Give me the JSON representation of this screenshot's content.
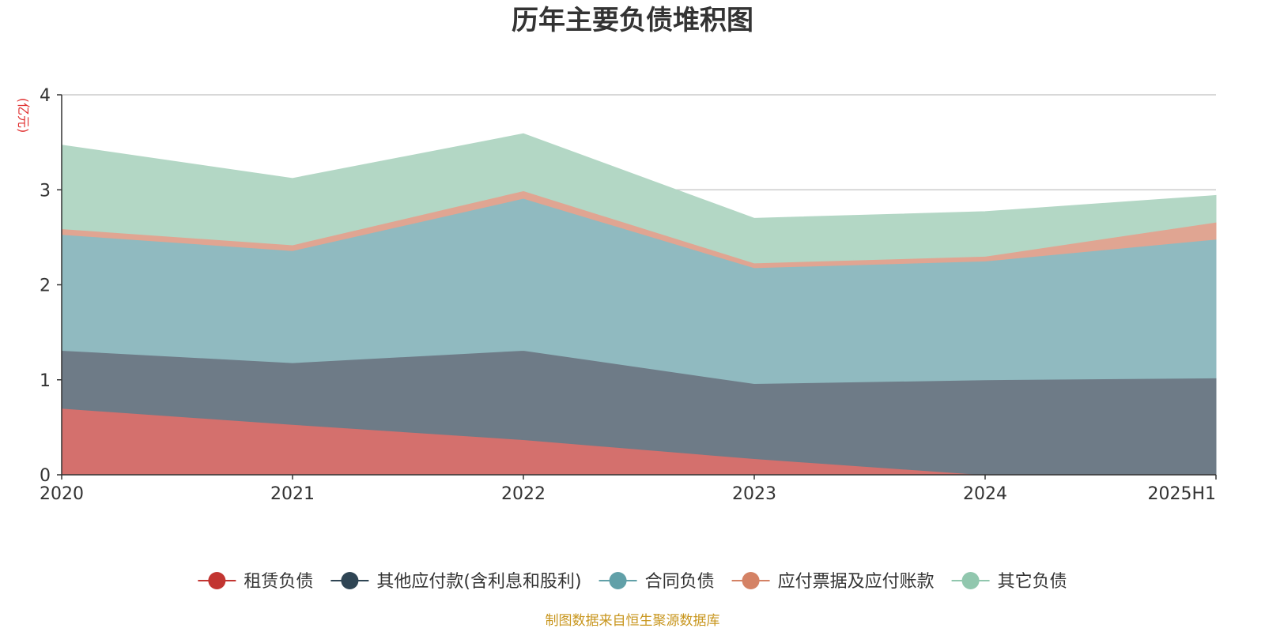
{
  "chart_data": {
    "type": "area",
    "stacked": true,
    "title": "历年主要负债堆积图",
    "ylabel": "(亿元)",
    "xlabel": "",
    "ylim": [
      0,
      4
    ],
    "yticks": [
      0,
      1,
      2,
      3,
      4
    ],
    "grid": true,
    "legend_position": "bottom",
    "categories": [
      "2020",
      "2021",
      "2022",
      "2023",
      "2024",
      "2025H1"
    ],
    "series": [
      {
        "name": "租赁负债",
        "color": "#c23531",
        "fill": "#d4706d",
        "values": [
          0.7,
          0.53,
          0.37,
          0.17,
          0.0,
          0.0
        ]
      },
      {
        "name": "其他应付款(含利息和股利)",
        "color": "#2f4554",
        "fill": "#6e7b87",
        "values": [
          0.61,
          0.65,
          0.94,
          0.79,
          1.0,
          1.02
        ]
      },
      {
        "name": "合同负债",
        "color": "#61a0a8",
        "fill": "#90bac0",
        "values": [
          1.22,
          1.18,
          1.6,
          1.22,
          1.25,
          1.46
        ]
      },
      {
        "name": "应付票据及应付账款",
        "color": "#d48265",
        "fill": "#e0a592",
        "values": [
          0.06,
          0.06,
          0.08,
          0.05,
          0.05,
          0.18
        ]
      },
      {
        "name": "其它负债",
        "color": "#91c7ae",
        "fill": "#b3d7c5",
        "values": [
          0.88,
          0.7,
          0.6,
          0.47,
          0.47,
          0.28
        ]
      }
    ],
    "source": "制图数据来自恒生聚源数据库"
  }
}
